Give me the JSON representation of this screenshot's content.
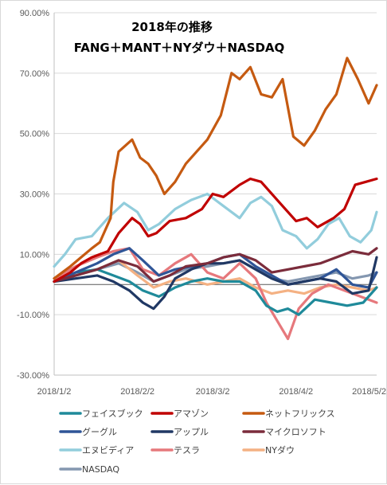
{
  "chart_data": {
    "type": "line",
    "title_lines": [
      "2018年の推移",
      "FANG＋MANT＋NYダウ＋NASDAQ"
    ],
    "xlabel": "",
    "ylabel": "",
    "ylim": [
      -30,
      90
    ],
    "yticks": [
      -30,
      -10,
      10,
      30,
      50,
      70,
      90
    ],
    "ytick_labels": [
      "-30.00%",
      "-10.00%",
      "10.00%",
      "30.00%",
      "50.00%",
      "70.00%",
      "90.00%"
    ],
    "xlim": [
      "2018-01-02",
      "2018-05-02"
    ],
    "xticks": [
      "2018-01-02",
      "2018-02-02",
      "2018-03-02",
      "2018-04-02",
      "2018-05-02"
    ],
    "xtick_labels": [
      "2018/1/2",
      "2018/2/2",
      "2018/3/2",
      "2018/4/2",
      "2018/5/2"
    ],
    "grid": "horizontal",
    "legend_position": "bottom",
    "series": [
      {
        "name": "ネットフリックス",
        "color": "#c55a11",
        "x": [
          "2018-01-02",
          "2018-01-08",
          "2018-01-12",
          "2018-01-16",
          "2018-01-19",
          "2018-01-23",
          "2018-01-24",
          "2018-01-26",
          "2018-01-31",
          "2018-02-03",
          "2018-02-06",
          "2018-02-09",
          "2018-02-12",
          "2018-02-16",
          "2018-02-20",
          "2018-02-24",
          "2018-02-28",
          "2018-03-05",
          "2018-03-09",
          "2018-03-12",
          "2018-03-16",
          "2018-03-20",
          "2018-03-24",
          "2018-03-28",
          "2018-04-01",
          "2018-04-05",
          "2018-04-09",
          "2018-04-13",
          "2018-04-17",
          "2018-04-21",
          "2018-04-25",
          "2018-04-29",
          "2018-05-02"
        ],
        "y": [
          2,
          6,
          9,
          12,
          14,
          22,
          34,
          44,
          48,
          42,
          40,
          36,
          30,
          34,
          40,
          44,
          48,
          56,
          70,
          68,
          72,
          63,
          62,
          68,
          49,
          46,
          51,
          58,
          63,
          75,
          68,
          60,
          66
        ]
      },
      {
        "name": "アマゾン",
        "color": "#c00000",
        "x": [
          "2018-01-02",
          "2018-01-08",
          "2018-01-12",
          "2018-01-16",
          "2018-01-22",
          "2018-01-26",
          "2018-01-31",
          "2018-02-03",
          "2018-02-06",
          "2018-02-09",
          "2018-02-14",
          "2018-02-20",
          "2018-02-26",
          "2018-03-02",
          "2018-03-06",
          "2018-03-12",
          "2018-03-16",
          "2018-03-20",
          "2018-03-26",
          "2018-04-02",
          "2018-04-06",
          "2018-04-10",
          "2018-04-16",
          "2018-04-20",
          "2018-04-24",
          "2018-04-28",
          "2018-05-02"
        ],
        "y": [
          1,
          4,
          7,
          9,
          11,
          17,
          22,
          20,
          16,
          17,
          21,
          22,
          25,
          30,
          29,
          33,
          35,
          34,
          28,
          21,
          22,
          19,
          22,
          25,
          33,
          34,
          35
        ]
      },
      {
        "name": "エヌビディア",
        "color": "#92cddc",
        "x": [
          "2018-01-02",
          "2018-01-06",
          "2018-01-10",
          "2018-01-16",
          "2018-01-22",
          "2018-01-28",
          "2018-02-02",
          "2018-02-06",
          "2018-02-10",
          "2018-02-16",
          "2018-02-22",
          "2018-02-28",
          "2018-03-06",
          "2018-03-12",
          "2018-03-16",
          "2018-03-20",
          "2018-03-24",
          "2018-03-28",
          "2018-04-02",
          "2018-04-06",
          "2018-04-10",
          "2018-04-14",
          "2018-04-18",
          "2018-04-22",
          "2018-04-26",
          "2018-04-30",
          "2018-05-02"
        ],
        "y": [
          6,
          10,
          15,
          16,
          22,
          27,
          24,
          18,
          20,
          25,
          28,
          30,
          26,
          22,
          27,
          29,
          26,
          18,
          16,
          12,
          15,
          20,
          22,
          16,
          14,
          18,
          24
        ]
      },
      {
        "name": "マイクロソフト",
        "color": "#7b2c3b",
        "x": [
          "2018-01-02",
          "2018-01-10",
          "2018-01-18",
          "2018-01-26",
          "2018-02-02",
          "2018-02-08",
          "2018-02-14",
          "2018-02-20",
          "2018-02-28",
          "2018-03-06",
          "2018-03-12",
          "2018-03-18",
          "2018-03-24",
          "2018-03-30",
          "2018-04-05",
          "2018-04-11",
          "2018-04-17",
          "2018-04-23",
          "2018-04-29",
          "2018-05-02"
        ],
        "y": [
          1,
          3,
          5,
          8,
          6,
          1,
          3,
          6,
          7,
          9,
          10,
          8,
          4,
          5,
          6,
          7,
          9,
          11,
          10,
          12
        ]
      },
      {
        "name": "アップル",
        "color": "#203864",
        "x": [
          "2018-01-02",
          "2018-01-10",
          "2018-01-18",
          "2018-01-24",
          "2018-01-30",
          "2018-02-04",
          "2018-02-08",
          "2018-02-12",
          "2018-02-16",
          "2018-02-22",
          "2018-02-28",
          "2018-03-06",
          "2018-03-12",
          "2018-03-18",
          "2018-03-24",
          "2018-03-30",
          "2018-04-05",
          "2018-04-11",
          "2018-04-17",
          "2018-04-23",
          "2018-04-29",
          "2018-05-02"
        ],
        "y": [
          1,
          2,
          3,
          1,
          -2,
          -6,
          -8,
          -4,
          2,
          5,
          7,
          7,
          8,
          5,
          2,
          0,
          1,
          2,
          1,
          -3,
          -2,
          9
        ]
      },
      {
        "name": "グーグル",
        "color": "#2f5597",
        "x": [
          "2018-01-02",
          "2018-01-10",
          "2018-01-18",
          "2018-01-24",
          "2018-01-30",
          "2018-02-04",
          "2018-02-10",
          "2018-02-16",
          "2018-02-22",
          "2018-02-28",
          "2018-03-06",
          "2018-03-12",
          "2018-03-18",
          "2018-03-24",
          "2018-03-30",
          "2018-04-05",
          "2018-04-11",
          "2018-04-17",
          "2018-04-23",
          "2018-04-29",
          "2018-05-02"
        ],
        "y": [
          1,
          4,
          7,
          10,
          12,
          8,
          3,
          5,
          6,
          7,
          9,
          10,
          6,
          3,
          0,
          1,
          2,
          5,
          0,
          -1,
          4
        ]
      },
      {
        "name": "フェイスブック",
        "color": "#1f8a9a",
        "x": [
          "2018-01-02",
          "2018-01-10",
          "2018-01-18",
          "2018-01-24",
          "2018-01-30",
          "2018-02-04",
          "2018-02-10",
          "2018-02-16",
          "2018-02-22",
          "2018-02-28",
          "2018-03-06",
          "2018-03-12",
          "2018-03-18",
          "2018-03-22",
          "2018-03-26",
          "2018-03-30",
          "2018-04-03",
          "2018-04-09",
          "2018-04-15",
          "2018-04-21",
          "2018-04-27",
          "2018-05-02"
        ],
        "y": [
          1,
          4,
          5,
          3,
          1,
          -2,
          -4,
          -1,
          1,
          2,
          1,
          1,
          -2,
          -7,
          -9,
          -8,
          -10,
          -5,
          -6,
          -7,
          -6,
          -1
        ]
      },
      {
        "name": "テスラ",
        "color": "#e6787c",
        "x": [
          "2018-01-02",
          "2018-01-10",
          "2018-01-18",
          "2018-01-24",
          "2018-01-30",
          "2018-02-04",
          "2018-02-10",
          "2018-02-16",
          "2018-02-22",
          "2018-02-28",
          "2018-03-06",
          "2018-03-12",
          "2018-03-18",
          "2018-03-22",
          "2018-03-26",
          "2018-03-30",
          "2018-04-03",
          "2018-04-08",
          "2018-04-14",
          "2018-04-20",
          "2018-04-26",
          "2018-05-02"
        ],
        "y": [
          2,
          6,
          9,
          11,
          12,
          5,
          3,
          7,
          10,
          4,
          2,
          7,
          2,
          -6,
          -12,
          -18,
          -8,
          -3,
          0,
          -2,
          -4,
          -6
        ]
      },
      {
        "name": "NYダウ",
        "color": "#f4b183",
        "x": [
          "2018-01-02",
          "2018-01-10",
          "2018-01-18",
          "2018-01-26",
          "2018-02-02",
          "2018-02-08",
          "2018-02-14",
          "2018-02-20",
          "2018-02-28",
          "2018-03-06",
          "2018-03-12",
          "2018-03-18",
          "2018-03-24",
          "2018-03-30",
          "2018-04-05",
          "2018-04-11",
          "2018-04-17",
          "2018-04-23",
          "2018-04-29",
          "2018-05-02"
        ],
        "y": [
          1,
          3,
          5,
          8,
          3,
          -1,
          1,
          2,
          0,
          1,
          2,
          -1,
          -3,
          -2,
          -3,
          -1,
          0,
          -1,
          -2,
          -1
        ]
      },
      {
        "name": "NASDAQ",
        "color": "#8497b0",
        "x": [
          "2018-01-02",
          "2018-01-10",
          "2018-01-18",
          "2018-01-26",
          "2018-02-02",
          "2018-02-08",
          "2018-02-14",
          "2018-02-20",
          "2018-02-28",
          "2018-03-06",
          "2018-03-12",
          "2018-03-18",
          "2018-03-24",
          "2018-03-30",
          "2018-04-05",
          "2018-04-11",
          "2018-04-17",
          "2018-04-23",
          "2018-04-29",
          "2018-05-02"
        ],
        "y": [
          1,
          3,
          5,
          7,
          4,
          1,
          3,
          5,
          6,
          7,
          8,
          5,
          2,
          1,
          2,
          3,
          4,
          2,
          3,
          4
        ]
      }
    ]
  }
}
